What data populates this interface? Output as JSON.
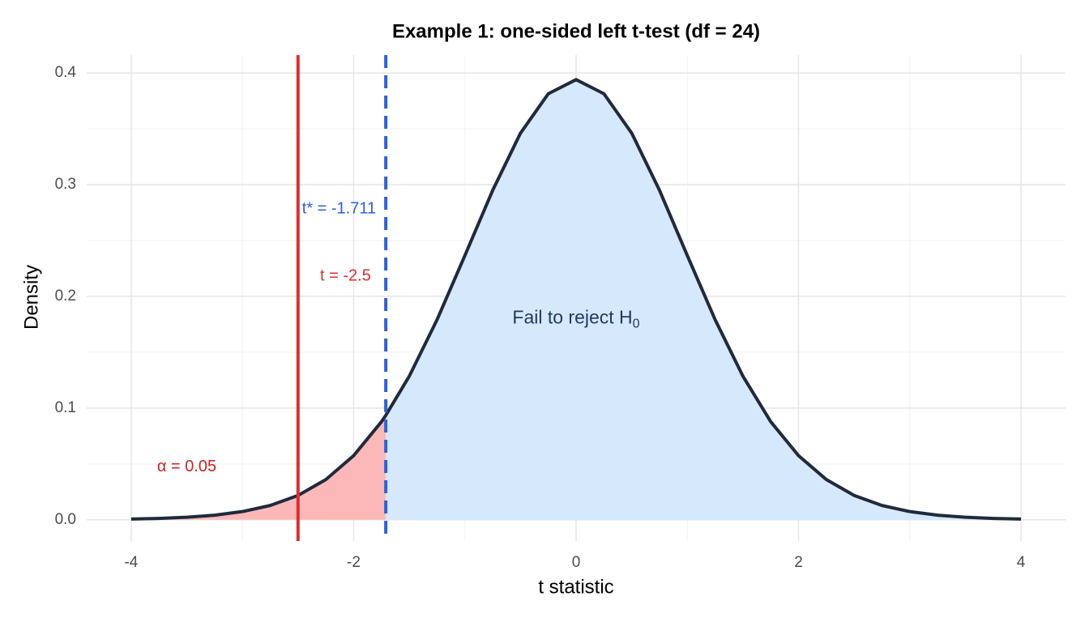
{
  "chart_data": {
    "type": "area",
    "title": "Example 1: one-sided left t-test (df = 24)",
    "x_label": "t statistic",
    "y_label": "Density",
    "x": [
      -4,
      -3.75,
      -3.5,
      -3.25,
      -3,
      -2.75,
      -2.5,
      -2.25,
      -2,
      -1.75,
      -1.711,
      -1.5,
      -1.25,
      -1,
      -0.75,
      -0.5,
      -0.25,
      0,
      0.25,
      0.5,
      0.75,
      1,
      1.25,
      1.5,
      1.75,
      2,
      2.25,
      2.5,
      2.75,
      3,
      3.25,
      3.5,
      3.75,
      4
    ],
    "series": [
      {
        "name": "Density",
        "color": "#1f2a3c",
        "values": [
          0.00066,
          0.00124,
          0.00227,
          0.0041,
          0.00736,
          0.0128,
          0.0218,
          0.036,
          0.0574,
          0.0878,
          0.0935,
          0.1285,
          0.1791,
          0.2365,
          0.2949,
          0.3461,
          0.3814,
          0.394,
          0.3814,
          0.3461,
          0.2949,
          0.2365,
          0.1791,
          0.1285,
          0.0878,
          0.0574,
          0.036,
          0.0218,
          0.0128,
          0.00736,
          0.0041,
          0.00227,
          0.00124,
          0.00066
        ]
      }
    ],
    "reject_color": "#fcb8b8",
    "accept_color": "#d6e8fc",
    "critical_value": -1.711,
    "vlines": [
      {
        "x": -2.5,
        "label": "t = -2.5",
        "color": "#dc2f2f",
        "dashed": false
      },
      {
        "x": -1.711,
        "label": "t* = -1.711",
        "color": "#2a62e0",
        "dashed": true
      }
    ],
    "alpha_label": "α = 0.05",
    "alpha_color": "#cc2222",
    "region_label": {
      "text": "Fail to reject H",
      "subscript": "0",
      "color": "#1f3a5f"
    },
    "xlim": [
      -4.4,
      4.4
    ],
    "ylim": [
      -0.019,
      0.416
    ],
    "xticks": [
      -4,
      -2,
      0,
      2,
      4
    ],
    "yticks": [
      {
        "value": 0,
        "label": "0.0"
      },
      0.1,
      0.2,
      0.3,
      0.4
    ],
    "x_minor_grid": [
      -3,
      -1,
      1,
      3
    ],
    "y_minor_grid": [
      0.05,
      0.15,
      0.25,
      0.35
    ],
    "grid": true
  }
}
